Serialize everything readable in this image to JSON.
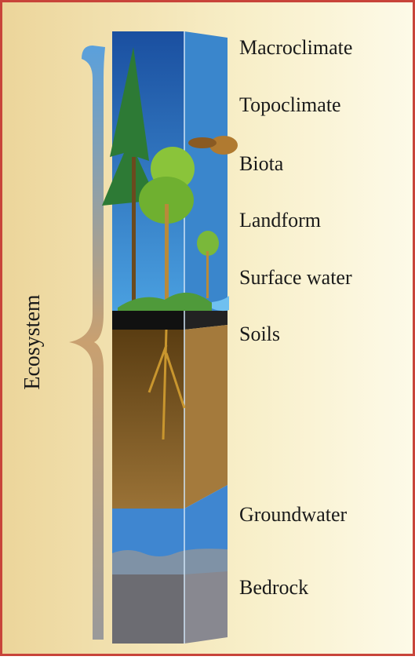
{
  "title": "Ecosystem",
  "layers": [
    "Macroclimate",
    "Topoclimate",
    "Biota",
    "Landform",
    "Surface water",
    "Soils",
    "Groundwater",
    "Bedrock"
  ]
}
